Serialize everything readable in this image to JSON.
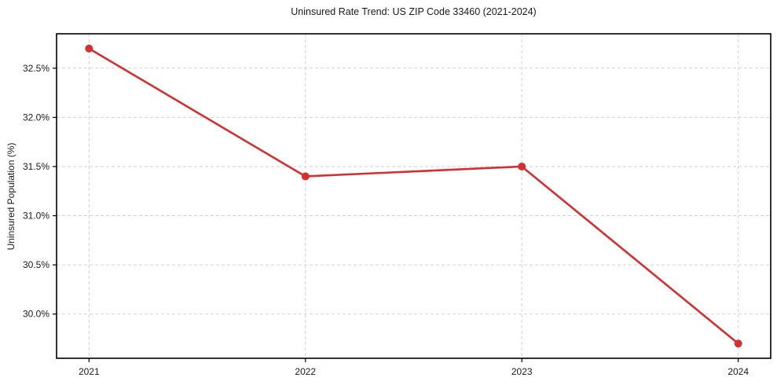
{
  "chart_data": {
    "type": "line",
    "title": "Uninsured Rate Trend: US ZIP Code 33460 (2021-2024)",
    "xlabel": "",
    "ylabel": "Uninsured Population (%)",
    "x": [
      2021,
      2022,
      2023,
      2024
    ],
    "series": [
      {
        "name": "Uninsured Rate",
        "values": [
          32.7,
          31.4,
          31.5,
          29.7
        ],
        "color": "#d62f2f"
      }
    ],
    "yticks": [
      30.0,
      30.5,
      31.0,
      31.5,
      32.0,
      32.5
    ],
    "ytick_labels": [
      "30.0%",
      "30.5%",
      "31.0%",
      "31.5%",
      "32.0%",
      "32.5%"
    ],
    "xtick_labels": [
      "2021",
      "2022",
      "2023",
      "2024"
    ],
    "xlim": [
      2020.85,
      2024.15
    ],
    "ylim": [
      29.55,
      32.85
    ],
    "grid": "both-dashed",
    "legend": "none",
    "background_color": "#ffffff",
    "spine_color": "#000000",
    "grid_color": "#d2d2d2"
  }
}
